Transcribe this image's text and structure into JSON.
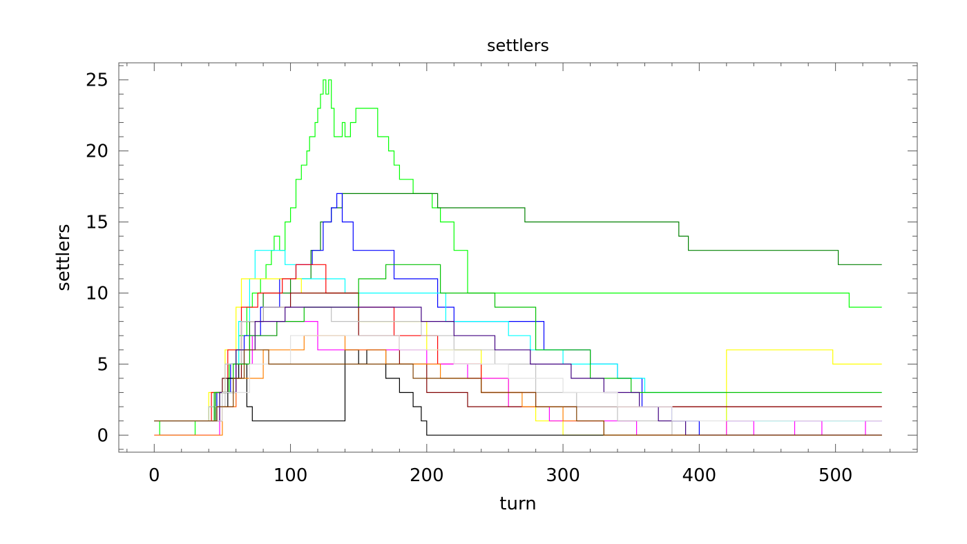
{
  "chart_data": {
    "type": "line",
    "title": "settlers",
    "xlabel": "turn",
    "ylabel": "settlers",
    "xlim": [
      -26,
      560
    ],
    "ylim": [
      -1.2,
      26.2
    ],
    "xticks": [
      0,
      100,
      200,
      300,
      400,
      500
    ],
    "yticks": [
      0,
      5,
      10,
      15,
      20,
      25
    ],
    "x_minor_step": 20,
    "y_minor_step": 1,
    "grid": false,
    "legend": "none",
    "series": [
      {
        "color": "#00ff00",
        "points": [
          [
            0,
            1
          ],
          [
            4,
            0
          ],
          [
            20,
            0
          ],
          [
            30,
            1
          ],
          [
            40,
            2
          ],
          [
            48,
            3
          ],
          [
            55,
            5
          ],
          [
            62,
            7
          ],
          [
            68,
            9
          ],
          [
            72,
            10
          ],
          [
            78,
            11
          ],
          [
            82,
            12
          ],
          [
            86,
            13
          ],
          [
            88,
            14
          ],
          [
            92,
            13
          ],
          [
            96,
            15
          ],
          [
            100,
            16
          ],
          [
            104,
            18
          ],
          [
            108,
            19
          ],
          [
            112,
            20
          ],
          [
            114,
            21
          ],
          [
            118,
            22
          ],
          [
            120,
            23
          ],
          [
            122,
            24
          ],
          [
            124,
            25
          ],
          [
            126,
            24
          ],
          [
            128,
            25
          ],
          [
            130,
            23
          ],
          [
            132,
            21
          ],
          [
            136,
            21
          ],
          [
            138,
            22
          ],
          [
            140,
            21
          ],
          [
            144,
            22
          ],
          [
            148,
            23
          ],
          [
            160,
            23
          ],
          [
            164,
            21
          ],
          [
            172,
            20
          ],
          [
            176,
            19
          ],
          [
            180,
            18
          ],
          [
            190,
            17
          ],
          [
            200,
            17
          ],
          [
            204,
            16
          ],
          [
            210,
            15
          ],
          [
            220,
            13
          ],
          [
            230,
            10
          ],
          [
            260,
            10
          ],
          [
            300,
            10
          ],
          [
            392,
            10
          ],
          [
            394,
            10
          ],
          [
            510,
            9
          ],
          [
            534,
            9
          ]
        ]
      },
      {
        "color": "#008000",
        "points": [
          [
            0,
            1
          ],
          [
            30,
            1
          ],
          [
            45,
            3
          ],
          [
            60,
            6
          ],
          [
            70,
            8
          ],
          [
            80,
            10
          ],
          [
            100,
            11
          ],
          [
            115,
            13
          ],
          [
            122,
            15
          ],
          [
            130,
            16
          ],
          [
            138,
            17
          ],
          [
            205,
            17
          ],
          [
            208,
            16
          ],
          [
            270,
            16
          ],
          [
            272,
            15
          ],
          [
            382,
            15
          ],
          [
            385,
            14
          ],
          [
            392,
            13
          ],
          [
            500,
            13
          ],
          [
            502,
            12
          ],
          [
            534,
            12
          ]
        ]
      },
      {
        "color": "#0000ff",
        "points": [
          [
            0,
            1
          ],
          [
            32,
            1
          ],
          [
            46,
            3
          ],
          [
            56,
            5
          ],
          [
            66,
            7
          ],
          [
            78,
            9
          ],
          [
            92,
            11
          ],
          [
            104,
            12
          ],
          [
            116,
            13
          ],
          [
            124,
            15
          ],
          [
            130,
            16
          ],
          [
            134,
            17
          ],
          [
            138,
            15
          ],
          [
            146,
            13
          ],
          [
            168,
            13
          ],
          [
            176,
            11
          ],
          [
            200,
            11
          ],
          [
            208,
            9
          ],
          [
            220,
            8
          ],
          [
            270,
            8
          ],
          [
            286,
            6
          ],
          [
            300,
            6
          ],
          [
            320,
            5
          ],
          [
            340,
            4
          ],
          [
            358,
            2
          ],
          [
            380,
            1
          ],
          [
            400,
            0
          ],
          [
            534,
            0
          ]
        ]
      },
      {
        "color": "#00ffff",
        "points": [
          [
            0,
            1
          ],
          [
            36,
            1
          ],
          [
            50,
            4
          ],
          [
            62,
            8
          ],
          [
            70,
            11
          ],
          [
            74,
            13
          ],
          [
            80,
            13
          ],
          [
            92,
            13
          ],
          [
            96,
            12
          ],
          [
            104,
            11
          ],
          [
            140,
            10
          ],
          [
            190,
            10
          ],
          [
            214,
            8
          ],
          [
            242,
            8
          ],
          [
            260,
            7
          ],
          [
            276,
            6
          ],
          [
            300,
            5
          ],
          [
            322,
            5
          ],
          [
            340,
            4
          ],
          [
            360,
            3
          ],
          [
            420,
            1
          ],
          [
            534,
            1
          ]
        ]
      },
      {
        "color": "#ffff00",
        "points": [
          [
            0,
            1
          ],
          [
            28,
            1
          ],
          [
            40,
            3
          ],
          [
            52,
            6
          ],
          [
            60,
            9
          ],
          [
            64,
            11
          ],
          [
            80,
            11
          ],
          [
            100,
            11
          ],
          [
            108,
            10
          ],
          [
            150,
            8
          ],
          [
            200,
            6
          ],
          [
            240,
            4
          ],
          [
            260,
            2
          ],
          [
            280,
            1
          ],
          [
            300,
            0
          ],
          [
            400,
            0
          ],
          [
            420,
            6
          ],
          [
            496,
            6
          ],
          [
            498,
            5
          ],
          [
            534,
            5
          ]
        ]
      },
      {
        "color": "#ff0000",
        "points": [
          [
            0,
            1
          ],
          [
            30,
            1
          ],
          [
            42,
            3
          ],
          [
            54,
            6
          ],
          [
            64,
            9
          ],
          [
            76,
            10
          ],
          [
            94,
            11
          ],
          [
            104,
            12
          ],
          [
            116,
            12
          ],
          [
            126,
            10
          ],
          [
            150,
            9
          ],
          [
            176,
            7
          ],
          [
            208,
            5
          ],
          [
            240,
            3
          ],
          [
            280,
            2
          ],
          [
            296,
            2
          ],
          [
            330,
            2
          ],
          [
            534,
            2
          ]
        ]
      },
      {
        "color": "#ff00ff",
        "points": [
          [
            0,
            0
          ],
          [
            34,
            0
          ],
          [
            48,
            2
          ],
          [
            60,
            5
          ],
          [
            72,
            7
          ],
          [
            90,
            8
          ],
          [
            120,
            6
          ],
          [
            140,
            6
          ],
          [
            170,
            6
          ],
          [
            200,
            5
          ],
          [
            230,
            4
          ],
          [
            260,
            2
          ],
          [
            290,
            1
          ],
          [
            350,
            1
          ],
          [
            354,
            0
          ],
          [
            380,
            0
          ],
          [
            420,
            1
          ],
          [
            440,
            0
          ],
          [
            470,
            1
          ],
          [
            490,
            0
          ],
          [
            522,
            1
          ],
          [
            534,
            1
          ]
        ]
      },
      {
        "color": "#800000",
        "points": [
          [
            0,
            1
          ],
          [
            36,
            1
          ],
          [
            50,
            4
          ],
          [
            64,
            8
          ],
          [
            80,
            9
          ],
          [
            100,
            10
          ],
          [
            120,
            10
          ],
          [
            150,
            7
          ],
          [
            180,
            5
          ],
          [
            200,
            3
          ],
          [
            230,
            2
          ],
          [
            260,
            2
          ],
          [
            300,
            2
          ],
          [
            340,
            2
          ],
          [
            534,
            2
          ]
        ]
      },
      {
        "color": "#000000",
        "points": [
          [
            0,
            1
          ],
          [
            32,
            1
          ],
          [
            44,
            2
          ],
          [
            54,
            4
          ],
          [
            62,
            5
          ],
          [
            68,
            2
          ],
          [
            72,
            1
          ],
          [
            130,
            1
          ],
          [
            140,
            6
          ],
          [
            150,
            5
          ],
          [
            156,
            6
          ],
          [
            170,
            4
          ],
          [
            180,
            3
          ],
          [
            190,
            2
          ],
          [
            196,
            1
          ],
          [
            200,
            0
          ],
          [
            250,
            0
          ],
          [
            534,
            0
          ]
        ]
      },
      {
        "color": "#c0c0c0",
        "points": [
          [
            0,
            1
          ],
          [
            30,
            1
          ],
          [
            40,
            2
          ],
          [
            52,
            5
          ],
          [
            64,
            8
          ],
          [
            80,
            9
          ],
          [
            100,
            9
          ],
          [
            130,
            8
          ],
          [
            170,
            8
          ],
          [
            196,
            7
          ],
          [
            220,
            6
          ],
          [
            250,
            5
          ],
          [
            280,
            3
          ],
          [
            310,
            2
          ],
          [
            340,
            1
          ],
          [
            380,
            0
          ],
          [
            534,
            0
          ]
        ]
      },
      {
        "color": "#00c000",
        "points": [
          [
            0,
            1
          ],
          [
            30,
            1
          ],
          [
            44,
            3
          ],
          [
            58,
            5
          ],
          [
            70,
            7
          ],
          [
            90,
            8
          ],
          [
            110,
            9
          ],
          [
            150,
            11
          ],
          [
            170,
            12
          ],
          [
            200,
            12
          ],
          [
            210,
            10
          ],
          [
            250,
            9
          ],
          [
            280,
            6
          ],
          [
            320,
            4
          ],
          [
            350,
            3
          ],
          [
            380,
            3
          ],
          [
            534,
            3
          ]
        ]
      },
      {
        "color": "#ff8000",
        "points": [
          [
            0,
            0
          ],
          [
            40,
            0
          ],
          [
            50,
            2
          ],
          [
            60,
            4
          ],
          [
            80,
            6
          ],
          [
            110,
            7
          ],
          [
            140,
            6
          ],
          [
            170,
            5
          ],
          [
            210,
            4
          ],
          [
            240,
            3
          ],
          [
            270,
            2
          ],
          [
            300,
            1
          ],
          [
            330,
            0
          ],
          [
            534,
            0
          ]
        ]
      },
      {
        "color": "#400080",
        "points": [
          [
            0,
            1
          ],
          [
            34,
            1
          ],
          [
            48,
            3
          ],
          [
            60,
            6
          ],
          [
            74,
            8
          ],
          [
            96,
            9
          ],
          [
            130,
            9
          ],
          [
            160,
            9
          ],
          [
            196,
            8
          ],
          [
            220,
            7
          ],
          [
            250,
            6
          ],
          [
            276,
            5
          ],
          [
            306,
            4
          ],
          [
            330,
            3
          ],
          [
            356,
            2
          ],
          [
            370,
            1
          ],
          [
            390,
            0
          ],
          [
            534,
            0
          ]
        ]
      },
      {
        "color": "#e0e0e0",
        "points": [
          [
            0,
            1
          ],
          [
            30,
            1
          ],
          [
            50,
            3
          ],
          [
            70,
            5
          ],
          [
            100,
            7
          ],
          [
            140,
            7
          ],
          [
            180,
            6
          ],
          [
            220,
            5
          ],
          [
            260,
            4
          ],
          [
            300,
            3
          ],
          [
            340,
            2
          ],
          [
            380,
            1
          ],
          [
            534,
            1
          ]
        ]
      },
      {
        "color": "#804000",
        "points": [
          [
            0,
            1
          ],
          [
            34,
            1
          ],
          [
            46,
            2
          ],
          [
            58,
            4
          ],
          [
            66,
            6
          ],
          [
            84,
            5
          ],
          [
            110,
            5
          ],
          [
            150,
            5
          ],
          [
            190,
            4
          ],
          [
            240,
            3
          ],
          [
            280,
            2
          ],
          [
            310,
            1
          ],
          [
            330,
            0
          ],
          [
            534,
            0
          ]
        ]
      }
    ]
  }
}
